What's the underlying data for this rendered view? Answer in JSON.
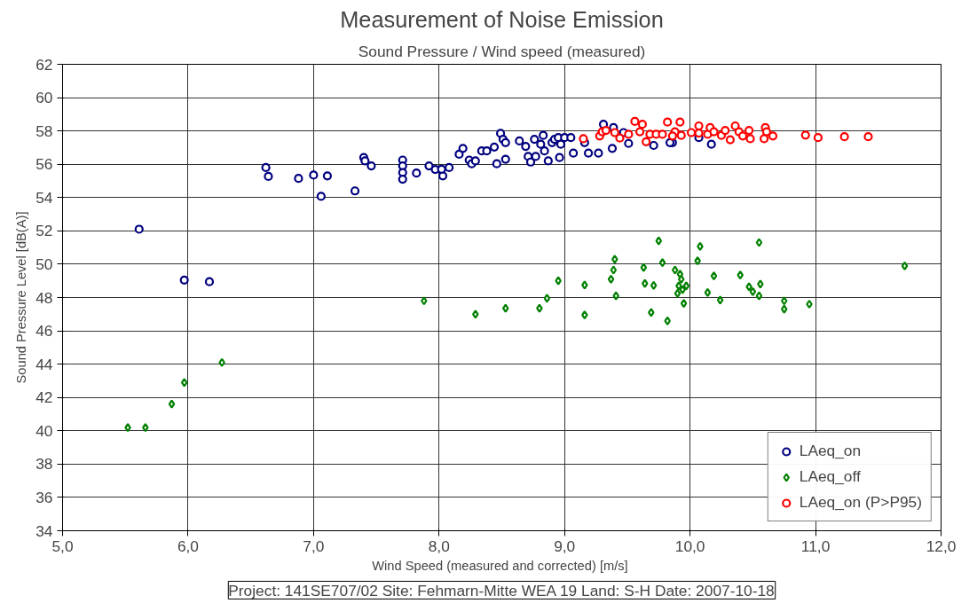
{
  "chart_data": {
    "type": "scatter",
    "title": "Measurement of Noise Emission",
    "subtitle": "Sound Pressure / Wind speed (measured)",
    "xlabel": "Wind Speed (measured and corrected)  [m/s]",
    "ylabel": "Sound Pressure Level [dB(A)]",
    "annotations": [
      "Project: 141SE707/02 Site: Fehmarn-Mitte WEA 19 Land: S-H Date: 2007-10-18"
    ],
    "xlim": [
      5,
      12
    ],
    "ylim": [
      34,
      62
    ],
    "xticks": [
      {
        "value": 5,
        "label": "5,0"
      },
      {
        "value": 6,
        "label": "6,0"
      },
      {
        "value": 7,
        "label": "7,0"
      },
      {
        "value": 8,
        "label": "8,0"
      },
      {
        "value": 9,
        "label": "9,0"
      },
      {
        "value": 10,
        "label": "10,0"
      },
      {
        "value": 11,
        "label": "11,0"
      },
      {
        "value": 12,
        "label": "12,0"
      }
    ],
    "yticks": [
      34,
      36,
      38,
      40,
      42,
      44,
      46,
      48,
      50,
      52,
      54,
      56,
      58,
      60,
      62
    ],
    "grid": true,
    "legend": "bottom right",
    "series": [
      {
        "name": "LAeq_on",
        "color": "#000080",
        "marker": "circle",
        "x": [
          5.61,
          5.97,
          6.17,
          6.62,
          6.64,
          6.88,
          7.0,
          7.06,
          7.11,
          7.33,
          7.4,
          7.41,
          7.46,
          7.71,
          7.71,
          7.71,
          7.71,
          7.82,
          7.92,
          7.97,
          8.03,
          8.02,
          8.08,
          8.16,
          8.19,
          8.24,
          8.26,
          8.29,
          8.34,
          8.38,
          8.44,
          8.46,
          8.49,
          8.51,
          8.53,
          8.53,
          8.64,
          8.69,
          8.71,
          8.73,
          8.76,
          8.77,
          8.81,
          8.83,
          8.84,
          8.87,
          8.9,
          8.92,
          8.95,
          8.96,
          8.97,
          9.0,
          9.05,
          9.07,
          9.16,
          9.19,
          9.27,
          9.31,
          9.38,
          9.39,
          9.47,
          9.51,
          9.71,
          9.86,
          9.84,
          10.17,
          10.07
        ],
        "values": [
          52.1,
          49.05,
          48.95,
          55.8,
          55.27,
          55.15,
          55.35,
          54.07,
          55.3,
          54.4,
          56.4,
          56.2,
          55.9,
          56.25,
          55.9,
          55.5,
          55.1,
          55.47,
          55.9,
          55.69,
          55.3,
          55.7,
          55.8,
          56.6,
          56.95,
          56.25,
          56.03,
          56.2,
          56.8,
          56.8,
          57.03,
          56.03,
          57.85,
          57.5,
          57.3,
          56.3,
          57.4,
          57.07,
          56.47,
          56.13,
          57.5,
          56.47,
          57.2,
          57.73,
          56.8,
          56.2,
          57.3,
          57.5,
          57.6,
          56.4,
          57.2,
          57.6,
          57.6,
          56.67,
          57.3,
          56.67,
          56.67,
          58.4,
          56.95,
          58.2,
          57.9,
          57.25,
          57.13,
          57.3,
          57.3,
          57.2,
          57.6
        ]
      },
      {
        "name": "LAeq_off",
        "color": "#008000",
        "marker": "diamond",
        "x": [
          5.52,
          5.66,
          5.87,
          5.97,
          6.27,
          7.88,
          8.29,
          8.53,
          8.8,
          8.86,
          8.95,
          9.16,
          9.16,
          9.37,
          9.39,
          9.4,
          9.41,
          9.63,
          9.64,
          9.71,
          9.69,
          9.75,
          9.78,
          9.82,
          9.88,
          9.92,
          9.93,
          9.91,
          9.97,
          9.94,
          9.9,
          9.95,
          10.08,
          10.06,
          10.19,
          10.14,
          10.24,
          10.4,
          10.47,
          10.5,
          10.55,
          10.56,
          10.55,
          10.75,
          10.75,
          10.95,
          11.71
        ],
        "values": [
          40.2,
          40.2,
          41.6,
          42.9,
          44.1,
          47.8,
          47.0,
          47.35,
          47.35,
          47.95,
          49.0,
          48.75,
          46.95,
          49.1,
          49.65,
          50.3,
          48.1,
          49.8,
          48.85,
          48.73,
          47.1,
          51.4,
          50.1,
          46.6,
          49.65,
          49.4,
          49.1,
          48.7,
          48.7,
          48.47,
          48.25,
          47.65,
          51.07,
          50.2,
          49.3,
          48.3,
          47.85,
          49.35,
          48.65,
          48.35,
          51.3,
          48.8,
          48.1,
          47.8,
          47.3,
          47.6,
          49.9
        ]
      },
      {
        "name": "LAeq_on (P>P95)",
        "color": "#ff0000",
        "marker": "circle",
        "x": [
          9.15,
          9.28,
          9.3,
          9.33,
          9.4,
          9.44,
          9.51,
          9.56,
          9.62,
          9.6,
          9.65,
          9.68,
          9.73,
          9.78,
          9.82,
          9.88,
          9.92,
          9.86,
          9.93,
          10.01,
          10.07,
          10.07,
          10.14,
          10.16,
          10.19,
          10.25,
          10.28,
          10.32,
          10.36,
          10.39,
          10.42,
          10.47,
          10.48,
          10.6,
          10.61,
          10.59,
          10.66,
          10.92,
          11.02,
          11.23,
          11.42
        ],
        "values": [
          57.53,
          57.7,
          57.95,
          58.03,
          57.9,
          57.57,
          57.8,
          58.57,
          58.4,
          57.95,
          57.35,
          57.8,
          57.8,
          57.8,
          58.53,
          57.95,
          58.53,
          57.7,
          57.73,
          57.9,
          58.3,
          57.87,
          57.8,
          58.2,
          57.95,
          57.73,
          58.03,
          57.47,
          58.3,
          57.95,
          57.7,
          58.03,
          57.53,
          58.2,
          57.95,
          57.53,
          57.7,
          57.75,
          57.6,
          57.65,
          57.65
        ]
      }
    ]
  }
}
